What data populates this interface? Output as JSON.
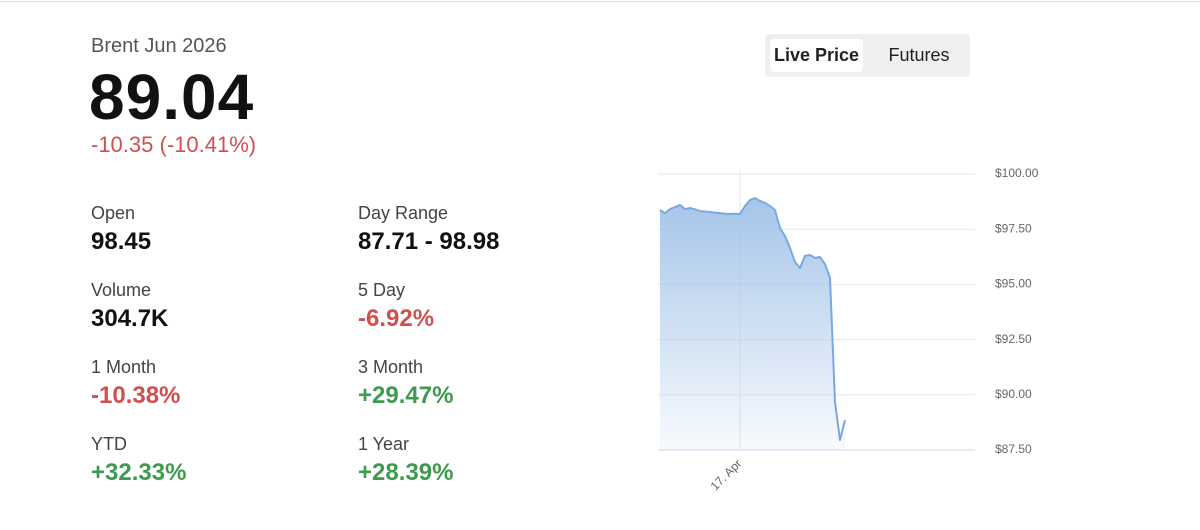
{
  "header": {
    "title": "Brent Jun 2026",
    "price": "89.04",
    "change": "-10.35 (-10.41%)"
  },
  "tabs": [
    {
      "label": "Live Price",
      "active": true
    },
    {
      "label": "Futures",
      "active": false
    }
  ],
  "stats": [
    {
      "label": "Open",
      "value": "98.45",
      "color": "#111111"
    },
    {
      "label": "Day Range",
      "value": "87.71 - 98.98",
      "color": "#111111"
    },
    {
      "label": "Volume",
      "value": "304.7K",
      "color": "#111111"
    },
    {
      "label": "5 Day",
      "value": "-6.92%",
      "color": "#d0504f"
    },
    {
      "label": "1 Month",
      "value": "-10.38%",
      "color": "#d0504f"
    },
    {
      "label": "3 Month",
      "value": "+29.47%",
      "color": "#3d9a4f"
    },
    {
      "label": "YTD",
      "value": "+32.33%",
      "color": "#3d9a4f"
    },
    {
      "label": "1 Year",
      "value": "+28.39%",
      "color": "#3d9a4f"
    }
  ],
  "chart_data": {
    "type": "area",
    "color": "#7aa8e0",
    "grid": true,
    "categories": [
      null,
      null,
      null,
      null,
      null,
      null,
      null,
      null,
      null,
      null,
      null,
      null,
      null,
      null,
      null,
      null,
      "17. Apr",
      null,
      null,
      null,
      null,
      null,
      null,
      null,
      null,
      null,
      null,
      null,
      null,
      null,
      null,
      null,
      null,
      null,
      null,
      null,
      null,
      null
    ],
    "values": [
      98.37,
      98.23,
      98.41,
      98.5,
      98.6,
      98.41,
      98.46,
      98.4,
      98.32,
      98.3,
      98.28,
      98.25,
      98.23,
      98.2,
      98.19,
      98.2,
      98.19,
      98.55,
      98.82,
      98.91,
      98.78,
      98.69,
      98.55,
      98.37,
      97.55,
      97.19,
      96.65,
      96.01,
      95.74,
      96.29,
      96.33,
      96.2,
      96.24,
      95.92,
      95.29,
      89.67,
      87.95,
      88.86
    ],
    "ylim": [
      87.5,
      100
    ],
    "yticks": [
      {
        "value": 87.5,
        "label": "$87.50"
      },
      {
        "value": 90,
        "label": "$90.00"
      },
      {
        "value": 92.5,
        "label": "$92.50"
      },
      {
        "value": 95,
        "label": "$95.00"
      },
      {
        "value": 97.5,
        "label": "$97.50"
      },
      {
        "value": 100,
        "label": "$100.00"
      }
    ]
  }
}
